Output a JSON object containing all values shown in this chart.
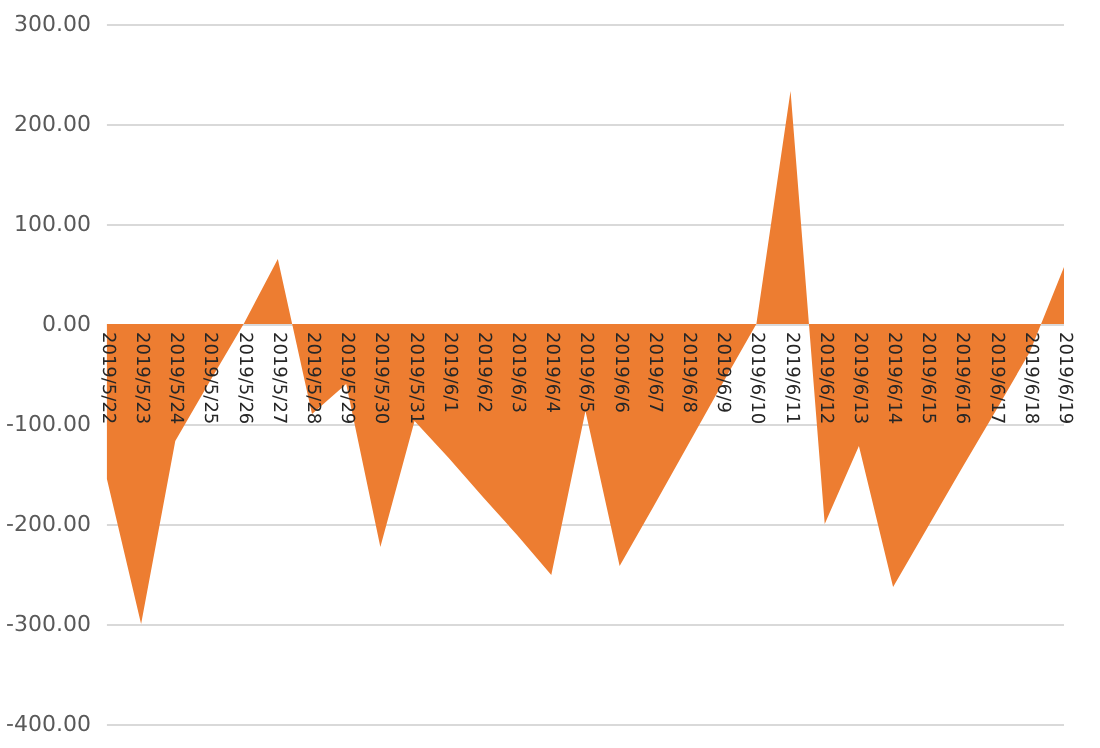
{
  "chart_data": {
    "type": "area",
    "categories": [
      "2019/5/22",
      "2019/5/23",
      "2019/5/24",
      "2019/5/25",
      "2019/5/26",
      "2019/5/27",
      "2019/5/28",
      "2019/5/29",
      "2019/5/30",
      "2019/5/31",
      "2019/6/1",
      "2019/6/2",
      "2019/6/3",
      "2019/6/4",
      "2019/6/5",
      "2019/6/6",
      "2019/6/7",
      "2019/6/8",
      "2019/6/9",
      "2019/6/10",
      "2019/6/11",
      "2019/6/12",
      "2019/6/13",
      "2019/6/14",
      "2019/6/15",
      "2019/6/16",
      "2019/6/17",
      "2019/6/18",
      "2019/6/19"
    ],
    "series": [
      {
        "color": "#ed7d31",
        "values": [
          -155,
          -300,
          -117,
          -58,
          0,
          65,
          -90,
          -60,
          -223,
          -97,
          -134,
          -173,
          -211,
          -251,
          -87,
          -242,
          -182,
          -121,
          -60,
          0,
          233,
          -200,
          -122,
          -263,
          -204,
          -145,
          -87,
          -28,
          57
        ]
      }
    ],
    "ylim": [
      -400,
      300
    ],
    "yticks": [
      {
        "value": -400,
        "label": "-400.00"
      },
      {
        "value": -300,
        "label": "-300.00"
      },
      {
        "value": -200,
        "label": "-200.00"
      },
      {
        "value": -100,
        "label": "-100.00"
      },
      {
        "value": 0,
        "label": "0.00"
      },
      {
        "value": 100,
        "label": "100.00"
      },
      {
        "value": 200,
        "label": "200.00"
      },
      {
        "value": 300,
        "label": "300.00"
      }
    ],
    "grid": "y",
    "marker": "none"
  }
}
